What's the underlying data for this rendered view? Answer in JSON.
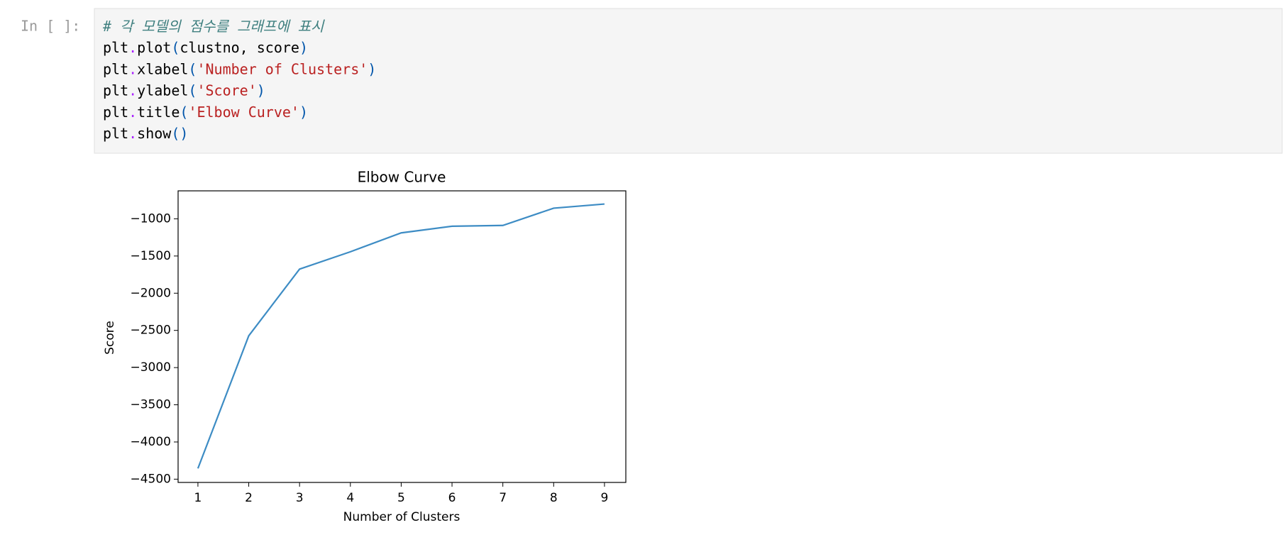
{
  "cell": {
    "prompt": "In [ ]:",
    "lines": [
      [
        {
          "text": "# 각 모델의 점수를 그래프에 표시",
          "color": "#408080",
          "italic": true
        }
      ],
      [
        {
          "text": "plt",
          "color": "#000000"
        },
        {
          "text": ".",
          "color": "#aa22ff"
        },
        {
          "text": "plot",
          "color": "#000000"
        },
        {
          "text": "(",
          "color": "#0055aa"
        },
        {
          "text": "clustno, score",
          "color": "#000000"
        },
        {
          "text": ")",
          "color": "#0055aa"
        }
      ],
      [
        {
          "text": "plt",
          "color": "#000000"
        },
        {
          "text": ".",
          "color": "#aa22ff"
        },
        {
          "text": "xlabel",
          "color": "#000000"
        },
        {
          "text": "(",
          "color": "#0055aa"
        },
        {
          "text": "'Number of Clusters'",
          "color": "#ba2121"
        },
        {
          "text": ")",
          "color": "#0055aa"
        }
      ],
      [
        {
          "text": "plt",
          "color": "#000000"
        },
        {
          "text": ".",
          "color": "#aa22ff"
        },
        {
          "text": "ylabel",
          "color": "#000000"
        },
        {
          "text": "(",
          "color": "#0055aa"
        },
        {
          "text": "'Score'",
          "color": "#ba2121"
        },
        {
          "text": ")",
          "color": "#0055aa"
        }
      ],
      [
        {
          "text": "plt",
          "color": "#000000"
        },
        {
          "text": ".",
          "color": "#aa22ff"
        },
        {
          "text": "title",
          "color": "#000000"
        },
        {
          "text": "(",
          "color": "#0055aa"
        },
        {
          "text": "'Elbow Curve'",
          "color": "#ba2121"
        },
        {
          "text": ")",
          "color": "#0055aa"
        }
      ],
      [
        {
          "text": "plt",
          "color": "#000000"
        },
        {
          "text": ".",
          "color": "#aa22ff"
        },
        {
          "text": "show",
          "color": "#000000"
        },
        {
          "text": "()",
          "color": "#0055aa"
        }
      ]
    ]
  },
  "chart_data": {
    "type": "line",
    "title": "Elbow Curve",
    "x_label": "Number of Clusters",
    "y_label": "Score",
    "x": [
      1,
      2,
      3,
      4,
      5,
      6,
      7,
      8,
      9
    ],
    "series": [
      {
        "name": "score",
        "color": "#3d8cc4",
        "values": [
          -4356,
          -2573,
          -1676,
          -1443,
          -1189,
          -1100,
          -1089,
          -857,
          -801
        ]
      }
    ],
    "xlim": [
      0.61,
      9.42
    ],
    "ylim": [
      -4544,
      -624
    ],
    "xticks": [
      1,
      2,
      3,
      4,
      5,
      6,
      7,
      8,
      9
    ],
    "yticks": [
      {
        "value": -4500,
        "label": "−4500"
      },
      {
        "value": -4000,
        "label": "−4000"
      },
      {
        "value": -3500,
        "label": "−3500"
      },
      {
        "value": -3000,
        "label": "−3000"
      },
      {
        "value": -2500,
        "label": "−2500"
      },
      {
        "value": -2000,
        "label": "−2000"
      },
      {
        "value": -1500,
        "label": "−1500"
      },
      {
        "value": -1000,
        "label": "−1000"
      }
    ],
    "grid": false
  }
}
